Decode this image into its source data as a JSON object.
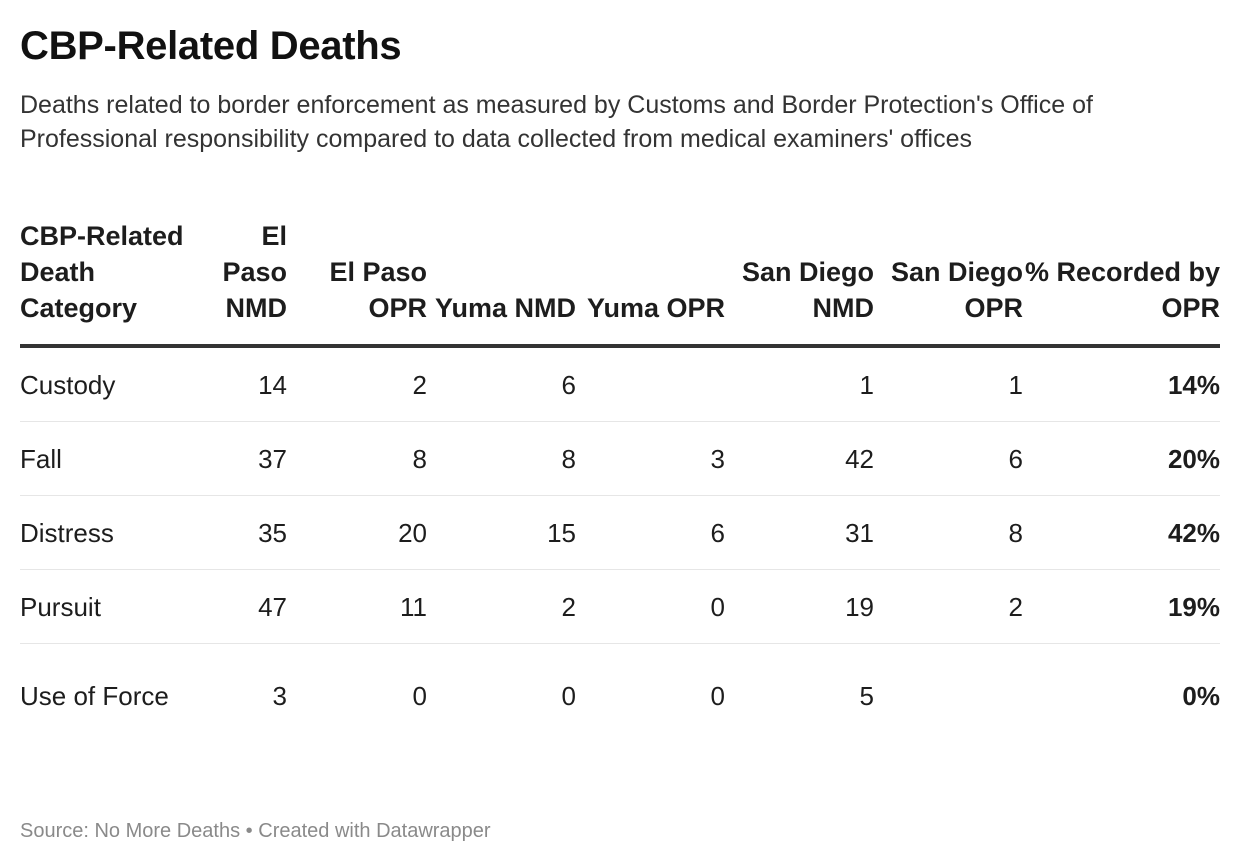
{
  "title": "CBP-Related Deaths",
  "subtitle": "Deaths related to border enforcement as measured by Customs and Border Protection's Office of Professional responsibility compared to data collected from medical examiners' offices",
  "footer": {
    "source_label": "Source: No More Deaths",
    "separator": "•",
    "credit": "Created with Datawrapper"
  },
  "chart_data": {
    "type": "table",
    "title": "CBP-Related Deaths",
    "columns": [
      "CBP-Related Death Category",
      "El Paso NMD",
      "El Paso OPR",
      "Yuma NMD",
      "Yuma OPR",
      "San Diego NMD",
      "San Diego OPR",
      "% Recorded by OPR"
    ],
    "rows": [
      {
        "category": "Custody",
        "values": [
          "14",
          "2",
          "6",
          "",
          "1",
          "1",
          "14%"
        ]
      },
      {
        "category": "Fall",
        "values": [
          "37",
          "8",
          "8",
          "3",
          "42",
          "6",
          "20%"
        ]
      },
      {
        "category": "Distress",
        "values": [
          "35",
          "20",
          "15",
          "6",
          "31",
          "8",
          "42%"
        ]
      },
      {
        "category": "Pursuit",
        "values": [
          "47",
          "11",
          "2",
          "0",
          "19",
          "2",
          "19%"
        ]
      },
      {
        "category": "Use of Force",
        "values": [
          "3",
          "0",
          "0",
          "0",
          "5",
          "",
          "0%"
        ]
      }
    ]
  }
}
